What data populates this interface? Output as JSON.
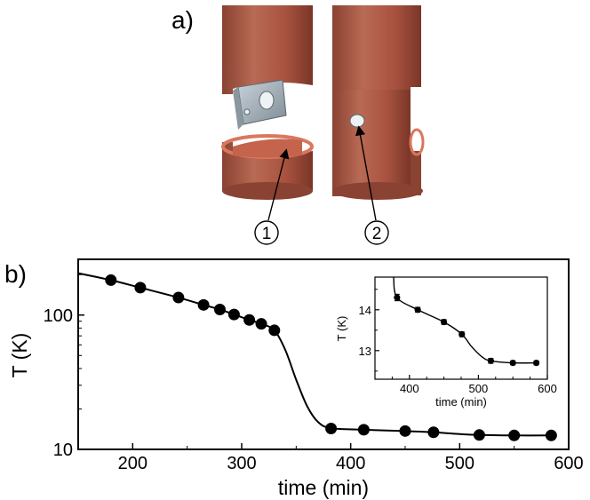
{
  "panel_a": {
    "label": "a)",
    "callouts": [
      "1",
      "2"
    ],
    "colors": {
      "copper": "#b35a46",
      "copper_dark": "#7d3a2b",
      "copper_light": "#c97a62",
      "clamp": "#a9b4bd"
    }
  },
  "panel_b": {
    "label": "b)"
  },
  "chart_data": [
    {
      "type": "line",
      "xlabel": "time (min)",
      "ylabel": "T (K)",
      "xlim": [
        150,
        600
      ],
      "ylim": [
        10,
        260
      ],
      "yscale": "log",
      "xticks": [
        200,
        300,
        400,
        500,
        600
      ],
      "yticks": [
        10,
        100
      ],
      "series": [
        {
          "marker": "circle",
          "x": [
            180,
            207,
            242,
            265,
            280,
            293,
            307,
            318,
            330,
            382,
            412,
            450,
            476,
            518,
            550,
            584
          ],
          "y": [
            182,
            160,
            135,
            119,
            110,
            101,
            92,
            86,
            77,
            14.3,
            14.0,
            13.7,
            13.4,
            12.8,
            12.7,
            12.7
          ]
        }
      ],
      "fit_curve": {
        "x": [
          150,
          180,
          207,
          242,
          265,
          280,
          293,
          307,
          318,
          330,
          340,
          350,
          360,
          370,
          382,
          412,
          450,
          476,
          500,
          518,
          550,
          584
        ],
        "y": [
          205,
          182,
          160,
          135,
          119,
          110,
          101,
          92,
          86,
          77,
          55,
          33,
          21,
          16,
          14.4,
          14.0,
          13.7,
          13.4,
          13.0,
          12.8,
          12.7,
          12.7
        ]
      }
    },
    {
      "type": "line",
      "inset": true,
      "xlabel": "time (min)",
      "ylabel": "T (K)",
      "xlim": [
        350,
        600
      ],
      "ylim": [
        12.3,
        14.8
      ],
      "xticks": [
        400,
        500,
        600
      ],
      "yticks": [
        13,
        14
      ],
      "series": [
        {
          "marker": "circle",
          "errorbars": true,
          "x": [
            382,
            412,
            450,
            476,
            518,
            550,
            584
          ],
          "y": [
            14.3,
            14.0,
            13.7,
            13.4,
            12.75,
            12.7,
            12.7
          ],
          "yerr": [
            0.08,
            0.06,
            0.06,
            0.06,
            0.06,
            0.05,
            0.05
          ]
        }
      ],
      "fit_curve": {
        "x": [
          377,
          382,
          412,
          450,
          476,
          490,
          505,
          518,
          550,
          584
        ],
        "y": [
          14.8,
          14.3,
          14.0,
          13.7,
          13.4,
          13.1,
          12.85,
          12.75,
          12.7,
          12.7
        ]
      }
    }
  ]
}
